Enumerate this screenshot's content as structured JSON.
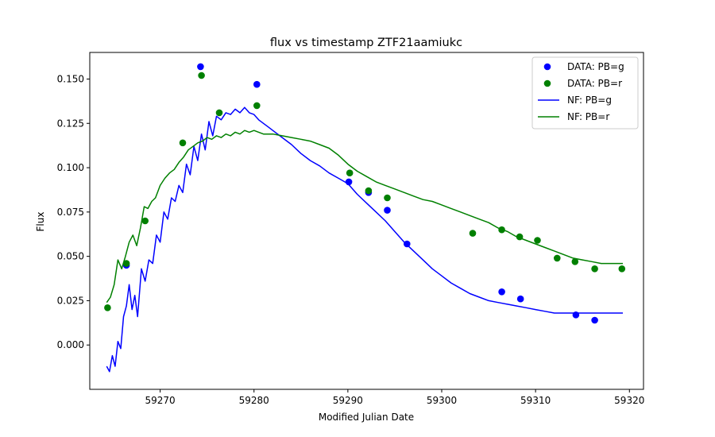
{
  "chart_data": {
    "type": "scatter",
    "title": "flux vs timestamp ZTF21aamiukc",
    "xlabel": "Modified Julian Date",
    "ylabel": "Flux",
    "xlim": [
      59262.5,
      59321.5
    ],
    "ylim": [
      -0.025,
      0.165
    ],
    "xticks": [
      59270,
      59280,
      59290,
      59300,
      59310,
      59320
    ],
    "yticks": [
      0.0,
      0.025,
      0.05,
      0.075,
      0.1,
      0.125,
      0.15
    ],
    "xtick_labels": [
      "59270",
      "59280",
      "59290",
      "59300",
      "59310",
      "59320"
    ],
    "ytick_labels": [
      "0.000",
      "0.025",
      "0.050",
      "0.075",
      "0.100",
      "0.125",
      "0.150"
    ],
    "grid": false,
    "legend_position": "top-right",
    "series": [
      {
        "name": "DATA: PB=g",
        "kind": "scatter",
        "color": "#0000ff",
        "x": [
          59266.4,
          59274.3,
          59280.3,
          59290.1,
          59292.2,
          59294.2,
          59296.3,
          59306.4,
          59308.4,
          59314.3,
          59316.3
        ],
        "y": [
          0.045,
          0.157,
          0.147,
          0.092,
          0.086,
          0.076,
          0.057,
          0.03,
          0.026,
          0.017,
          0.014
        ]
      },
      {
        "name": "DATA: PB=r",
        "kind": "scatter",
        "color": "#008000",
        "x": [
          59264.4,
          59266.4,
          59268.4,
          59272.4,
          59274.4,
          59276.3,
          59280.3,
          59290.2,
          59292.2,
          59294.2,
          59303.3,
          59306.4,
          59308.3,
          59310.2,
          59312.3,
          59314.2,
          59316.3,
          59319.2
        ],
        "y": [
          0.021,
          0.046,
          0.07,
          0.114,
          0.152,
          0.131,
          0.135,
          0.097,
          0.087,
          0.083,
          0.063,
          0.065,
          0.061,
          0.059,
          0.049,
          0.047,
          0.043,
          0.043
        ]
      },
      {
        "name": "NF: PB=g",
        "kind": "line",
        "color": "#0000ff",
        "x": [
          59264.3,
          59264.6,
          59264.9,
          59265.2,
          59265.5,
          59265.8,
          59266.1,
          59266.4,
          59266.7,
          59267.0,
          59267.3,
          59267.6,
          59268.0,
          59268.4,
          59268.8,
          59269.2,
          59269.6,
          59270.0,
          59270.4,
          59270.8,
          59271.2,
          59271.6,
          59272.0,
          59272.4,
          59272.8,
          59273.2,
          59273.6,
          59274.0,
          59274.4,
          59274.8,
          59275.2,
          59275.6,
          59276.0,
          59276.5,
          59277.0,
          59277.5,
          59278.0,
          59278.5,
          59279.0,
          59279.5,
          59280.0,
          59280.5,
          59281.0,
          59281.5,
          59282.0,
          59283.0,
          59284.0,
          59285.0,
          59286.0,
          59287.0,
          59288.0,
          59289.0,
          59290.0,
          59291.0,
          59292.0,
          59293.0,
          59294.0,
          59295.0,
          59296.0,
          59297.0,
          59298.0,
          59299.0,
          59300.0,
          59301.0,
          59302.0,
          59303.0,
          59304.0,
          59305.0,
          59306.0,
          59307.0,
          59308.0,
          59309.0,
          59310.0,
          59311.0,
          59312.0,
          59313.0,
          59314.0,
          59315.0,
          59316.0,
          59317.0,
          59318.0,
          59319.0,
          59319.3
        ],
        "y": [
          -0.012,
          -0.015,
          -0.006,
          -0.012,
          0.002,
          -0.002,
          0.016,
          0.022,
          0.034,
          0.02,
          0.028,
          0.016,
          0.043,
          0.036,
          0.048,
          0.046,
          0.062,
          0.058,
          0.075,
          0.071,
          0.083,
          0.081,
          0.09,
          0.086,
          0.102,
          0.096,
          0.112,
          0.104,
          0.119,
          0.11,
          0.126,
          0.118,
          0.129,
          0.127,
          0.131,
          0.13,
          0.133,
          0.131,
          0.134,
          0.131,
          0.13,
          0.127,
          0.125,
          0.123,
          0.121,
          0.117,
          0.113,
          0.108,
          0.104,
          0.101,
          0.097,
          0.094,
          0.091,
          0.085,
          0.08,
          0.075,
          0.07,
          0.064,
          0.058,
          0.053,
          0.048,
          0.043,
          0.039,
          0.035,
          0.032,
          0.029,
          0.027,
          0.025,
          0.024,
          0.023,
          0.022,
          0.021,
          0.02,
          0.019,
          0.018,
          0.018,
          0.018,
          0.018,
          0.018,
          0.018,
          0.018,
          0.018,
          0.018
        ]
      },
      {
        "name": "NF: PB=r",
        "kind": "line",
        "color": "#008000",
        "x": [
          59264.3,
          59264.7,
          59265.1,
          59265.5,
          59265.9,
          59266.3,
          59266.7,
          59267.1,
          59267.5,
          59267.9,
          59268.3,
          59268.7,
          59269.1,
          59269.5,
          59270.0,
          59270.5,
          59271.0,
          59271.5,
          59272.0,
          59272.5,
          59273.0,
          59273.5,
          59274.0,
          59274.5,
          59275.0,
          59275.5,
          59276.0,
          59276.5,
          59277.0,
          59277.5,
          59278.0,
          59278.5,
          59279.0,
          59279.5,
          59280.0,
          59280.5,
          59281.0,
          59281.5,
          59282.0,
          59283.0,
          59284.0,
          59285.0,
          59286.0,
          59287.0,
          59288.0,
          59289.0,
          59290.0,
          59291.0,
          59292.0,
          59293.0,
          59294.0,
          59295.0,
          59296.0,
          59297.0,
          59298.0,
          59299.0,
          59300.0,
          59301.0,
          59302.0,
          59303.0,
          59304.0,
          59305.0,
          59306.0,
          59307.0,
          59308.0,
          59309.0,
          59310.0,
          59311.0,
          59312.0,
          59313.0,
          59314.0,
          59315.0,
          59316.0,
          59317.0,
          59318.0,
          59319.0,
          59319.3
        ],
        "y": [
          0.024,
          0.027,
          0.034,
          0.048,
          0.043,
          0.05,
          0.058,
          0.062,
          0.056,
          0.066,
          0.078,
          0.077,
          0.081,
          0.083,
          0.09,
          0.094,
          0.097,
          0.099,
          0.103,
          0.106,
          0.11,
          0.112,
          0.114,
          0.115,
          0.117,
          0.116,
          0.118,
          0.117,
          0.119,
          0.118,
          0.12,
          0.119,
          0.121,
          0.12,
          0.121,
          0.12,
          0.119,
          0.119,
          0.119,
          0.118,
          0.117,
          0.116,
          0.115,
          0.113,
          0.111,
          0.107,
          0.102,
          0.098,
          0.095,
          0.092,
          0.09,
          0.088,
          0.086,
          0.084,
          0.082,
          0.081,
          0.079,
          0.077,
          0.075,
          0.073,
          0.071,
          0.069,
          0.066,
          0.064,
          0.061,
          0.059,
          0.057,
          0.055,
          0.053,
          0.051,
          0.049,
          0.048,
          0.047,
          0.046,
          0.046,
          0.046,
          0.046
        ]
      }
    ]
  }
}
